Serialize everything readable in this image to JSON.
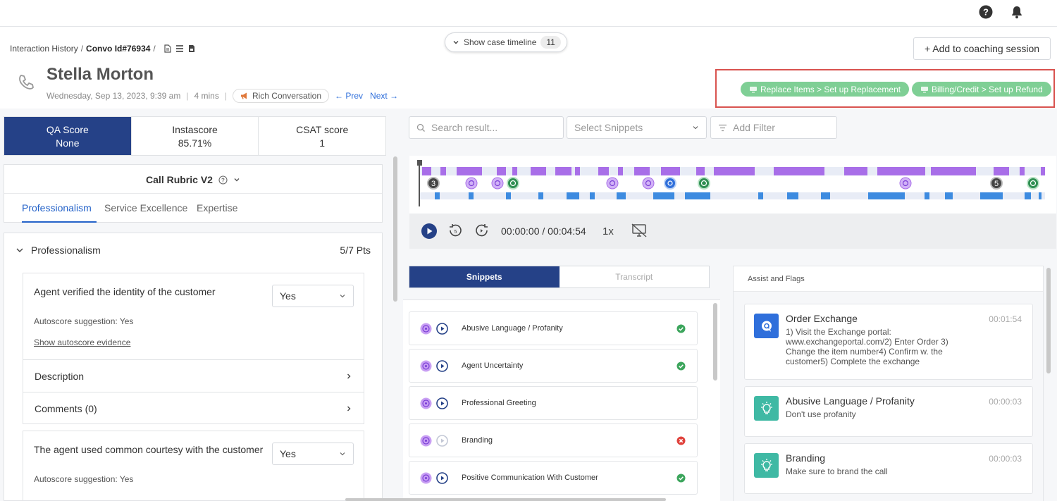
{
  "header": {
    "breadcrumb": {
      "root": "Interaction History",
      "current": "Convo Id#76934",
      "sep": "/"
    },
    "timeline_toggle": {
      "label": "Show case timeline",
      "count": "11"
    },
    "coaching_button": "+ Add to coaching session",
    "customer_name": "Stella Morton",
    "date": "Wednesday, Sep 13, 2023, 9:39 am",
    "duration": "4 mins",
    "rich_label": "Rich Conversation",
    "prev_label": "Prev",
    "next_label": "Next",
    "flags": [
      {
        "label": "Replace Items > Set up Replacement",
        "color": "#7fcf95"
      },
      {
        "label": "Billing/Credit > Set up Refund",
        "color": "#7fcf95"
      }
    ]
  },
  "scores": [
    {
      "label": "QA Score",
      "value": "None"
    },
    {
      "label": "Instascore",
      "value": "85.71%"
    },
    {
      "label": "CSAT score",
      "value": "1"
    }
  ],
  "rubric": {
    "title": "Call Rubric V2",
    "tabs": [
      "Professionalism",
      "Service Excellence",
      "Expertise"
    ]
  },
  "section": {
    "title": "Professionalism",
    "points": "5/7 Pts",
    "questions": [
      {
        "text": "Agent verified the identity of the customer",
        "answer": "Yes",
        "autoscore": "Autoscore suggestion: Yes",
        "evidence": "Show autoscore evidence"
      },
      {
        "text": "The agent used common courtesy with the customer",
        "answer": "Yes",
        "autoscore": "Autoscore suggestion: Yes"
      }
    ],
    "description_label": "Description",
    "comments_label": "Comments (0)"
  },
  "filters": {
    "search_placeholder": "Search result...",
    "snippets_placeholder": "Select Snippets",
    "add_filter": "Add Filter"
  },
  "player": {
    "time": "00:00:00 / 00:04:54",
    "speed": "1x",
    "marker_counts": [
      "3",
      "5"
    ]
  },
  "snippet_tabs": [
    "Snippets",
    "Transcript"
  ],
  "snippets": [
    {
      "label": "Abusive Language / Profanity",
      "status": "pass"
    },
    {
      "label": "Agent Uncertainty",
      "status": "pass"
    },
    {
      "label": "Professional Greeting",
      "status": "none"
    },
    {
      "label": "Branding",
      "status": "fail"
    },
    {
      "label": "Positive Communication With Customer",
      "status": "pass"
    }
  ],
  "assist": {
    "title": "Assist and Flags",
    "cards": [
      {
        "title": "Order Exchange",
        "time": "00:01:54",
        "body": "1) Visit the Exchange portal: www.exchangeportal.com/2) Enter Order 3) Change the item number4) Confirm w. the customer5) Complete the exchange",
        "icon": "chat-icon"
      },
      {
        "title": "Abusive Language / Profanity",
        "time": "00:00:03",
        "body": "Don't use profanity",
        "icon": "bulb-icon"
      },
      {
        "title": "Branding",
        "time": "00:00:03",
        "body": "Make sure to brand the call",
        "icon": "bulb-icon"
      }
    ]
  },
  "colors": {
    "primary": "#254187",
    "link": "#2563c9",
    "flag_green": "#7fcf95",
    "timeline_purple": "#a86ee8",
    "timeline_blue": "#3d8be0"
  }
}
